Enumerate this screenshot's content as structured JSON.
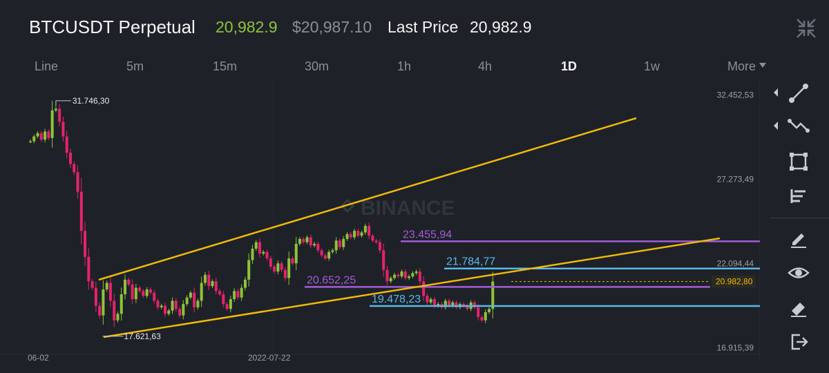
{
  "header": {
    "symbol": "BTCUSDT Perpetual",
    "mark_price": "20,982.9",
    "index_price": "$20,987.10",
    "last_price_label": "Last Price",
    "last_price": "20,982.9"
  },
  "intervals": [
    "Line",
    "5m",
    "15m",
    "30m",
    "1h",
    "4h",
    "1D",
    "1w",
    "More"
  ],
  "active_interval": "1D",
  "watermark": "BINANCE",
  "colors": {
    "up": "#8fc33a",
    "down": "#e5236d",
    "trendline": "#f0b90b",
    "resistance": "#a45dd8",
    "support": "#5ab9ea",
    "background": "#1e2128"
  },
  "toolbar": [
    "trendline-tool-icon",
    "fibonacci-tool-icon",
    "rectangle-tool-icon",
    "indicator-tool-icon",
    "pencil-icon",
    "eye-icon",
    "eraser-icon",
    "exit-icon"
  ],
  "chart_data": {
    "type": "candlestick",
    "y_ticks": [
      "32.452,53",
      "27.273,49",
      "22.094,44",
      "16.915,39"
    ],
    "y_tick_values": [
      32452.53,
      27273.49,
      22094.44,
      16915.39
    ],
    "x_ticks": [
      "06-02",
      "2022-07-22"
    ],
    "ylim": [
      16000,
      33400
    ],
    "high_label": "31.746,30",
    "low_label": "17.621,63",
    "current_price_label": "20.982,80",
    "current_price": 20982.8,
    "levels": [
      {
        "name": "resistance-1",
        "value": 23455.94,
        "label": "23.455,94",
        "color": "resistance"
      },
      {
        "name": "support-1",
        "value": 21784.77,
        "label": "21.784,77",
        "color": "support"
      },
      {
        "name": "resistance-2",
        "value": 20652.25,
        "label": "20.652,25",
        "color": "resistance"
      },
      {
        "name": "support-2",
        "value": 19478.23,
        "label": "19.478,23",
        "color": "support"
      }
    ],
    "closes": [
      29600,
      29900,
      30100,
      29700,
      30200,
      29800,
      31500,
      31600,
      30800,
      29900,
      28900,
      28200,
      27700,
      26500,
      24100,
      22500,
      21000,
      20600,
      19500,
      18900,
      20500,
      20900,
      19800,
      18600,
      19000,
      20200,
      21100,
      20800,
      19900,
      20600,
      20400,
      20100,
      20500,
      20300,
      19800,
      19400,
      19500,
      19000,
      19200,
      19800,
      19300,
      18900,
      19600,
      20000,
      20300,
      19400,
      19800,
      20900,
      21400,
      20700,
      21000,
      20400,
      20200,
      19600,
      19300,
      19900,
      20400,
      20000,
      20600,
      21100,
      22300,
      23000,
      23400,
      22700,
      22800,
      22400,
      21900,
      21600,
      22100,
      21700,
      21200,
      22400,
      22100,
      23300,
      23600,
      23400,
      23700,
      23200,
      23300,
      22900,
      22600,
      22400,
      22800,
      22900,
      23500,
      23100,
      23600,
      23900,
      23700,
      24100,
      23800,
      24000,
      24400,
      23800,
      23500,
      23400,
      22900,
      21700,
      21000,
      21200,
      21400,
      21300,
      21600,
      21200,
      21300,
      21500,
      21600,
      21000,
      20100,
      19700,
      19900,
      19500,
      19600,
      19400,
      19800,
      19500,
      19700,
      19400,
      19600,
      19500,
      19300,
      19700,
      19400,
      18800,
      18600,
      19100,
      19300,
      20982.8
    ]
  }
}
